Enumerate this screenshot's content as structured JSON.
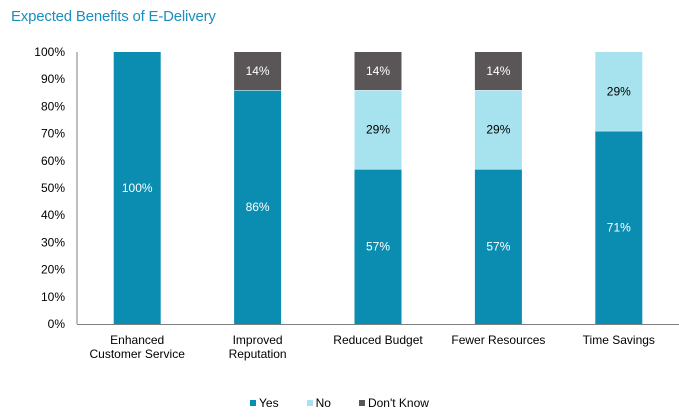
{
  "chart_data": {
    "type": "bar",
    "stacked": true,
    "title": "Expected Benefits of E-Delivery",
    "xlabel": "",
    "ylabel": "",
    "ylim": [
      0,
      100
    ],
    "yticks": [
      "0%",
      "10%",
      "20%",
      "30%",
      "40%",
      "50%",
      "60%",
      "70%",
      "80%",
      "90%",
      "100%"
    ],
    "categories": [
      [
        "Enhanced",
        "Customer Service"
      ],
      [
        "Improved",
        "Reputation"
      ],
      [
        "Reduced Budget"
      ],
      [
        "Fewer Resources"
      ],
      [
        "Time Savings"
      ]
    ],
    "series": [
      {
        "name": "Yes",
        "color": "#0a8db0",
        "label_color": "#ffffff",
        "values": [
          100,
          86,
          57,
          57,
          71
        ],
        "labels": [
          "100%",
          "86%",
          "57%",
          "57%",
          "71%"
        ]
      },
      {
        "name": "No",
        "color": "#a6e3ee",
        "label_color": "#000000",
        "values": [
          0,
          0,
          29,
          29,
          29
        ],
        "labels": [
          "",
          "",
          "29%",
          "29%",
          "29%"
        ]
      },
      {
        "name": "Don't Know",
        "color": "#5a5658",
        "label_color": "#ffffff",
        "values": [
          0,
          14,
          14,
          14,
          0
        ],
        "labels": [
          "",
          "14%",
          "14%",
          "14%",
          ""
        ]
      }
    ],
    "grid": false,
    "legend_position": "bottom"
  }
}
